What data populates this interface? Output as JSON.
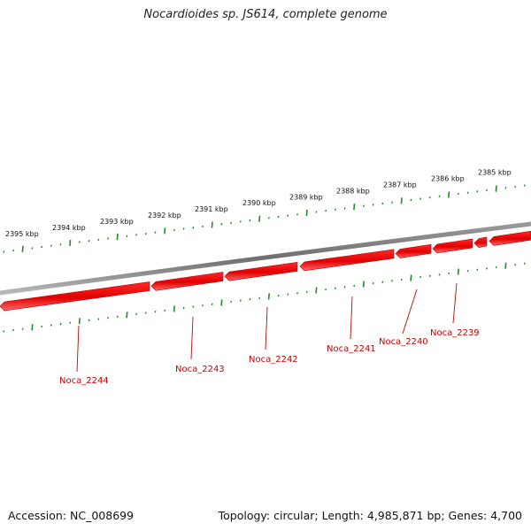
{
  "title": "Nocardioides sp. JS614, complete genome",
  "footer": {
    "accession": "Accession: NC_008699",
    "summary": "Topology: circular; Length: 4,985,871 bp; Genes: 4,700"
  },
  "scale_labels": [
    "2395 kbp",
    "2394 kbp",
    "2393 kbp",
    "2392 kbp",
    "2391 kbp",
    "2390 kbp",
    "2389 kbp",
    "2388 kbp",
    "2387 kbp",
    "2386 kbp",
    "2385 kbp"
  ],
  "genes": [
    {
      "name": "Noca_2244"
    },
    {
      "name": "Noca_2243"
    },
    {
      "name": "Noca_2242"
    },
    {
      "name": "Noca_2241"
    },
    {
      "name": "Noca_2240"
    },
    {
      "name": "Noca_2239"
    }
  ],
  "colors": {
    "backbone": "#808080",
    "gene": "#ee0000",
    "gene_label": "#cc0000",
    "tick": "#228b22"
  }
}
